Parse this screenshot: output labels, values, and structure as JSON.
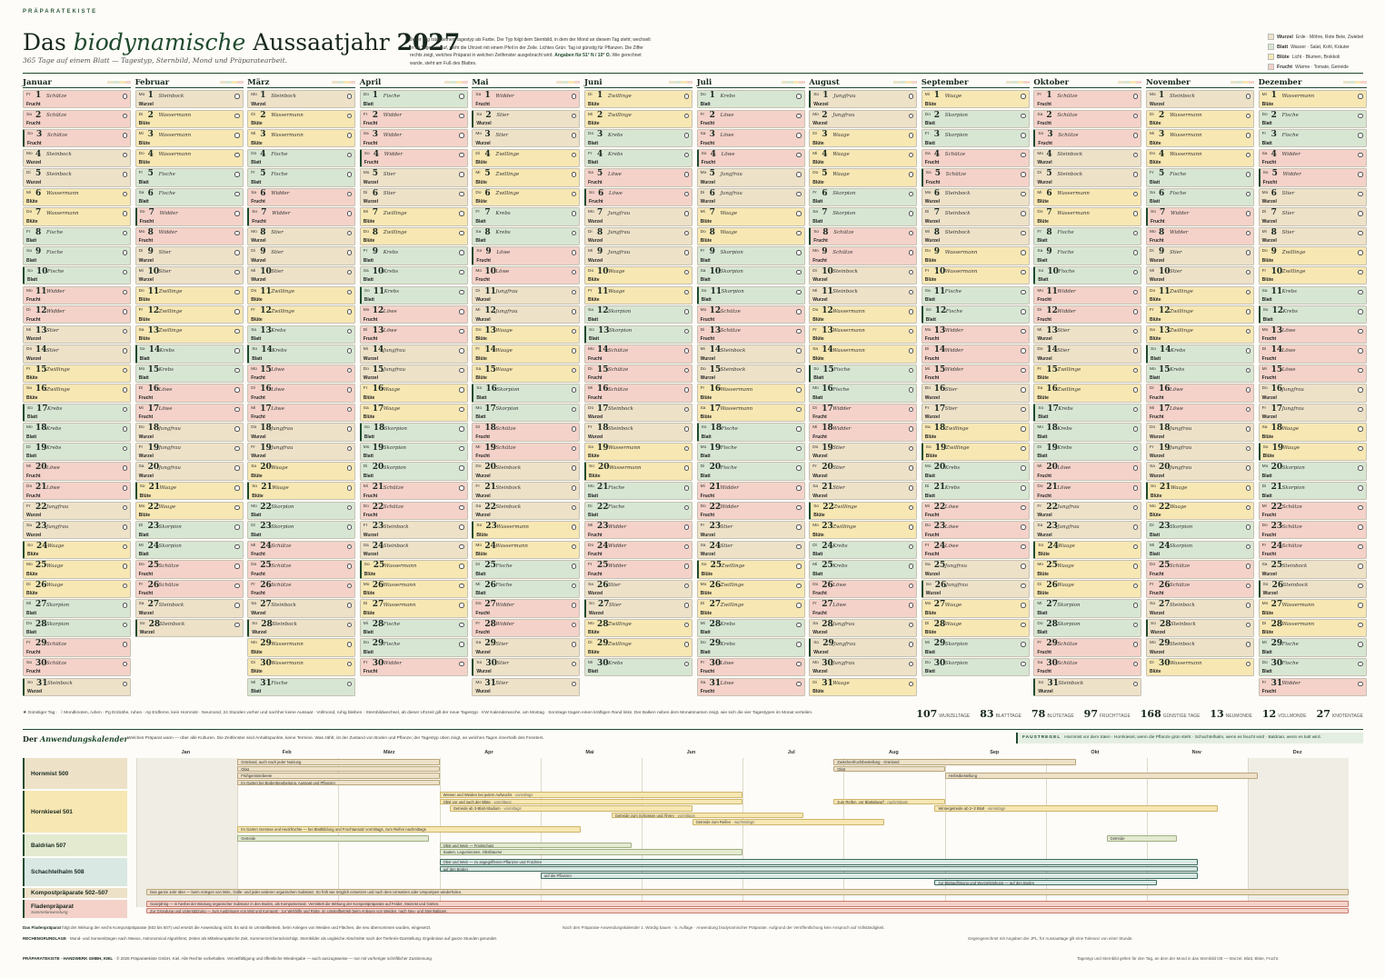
{
  "header": {
    "kicker": "PRÄPARATEKISTE",
    "title_pre": "Das ",
    "title_em": "biodynamische",
    "title_post": " Aussaatjahr ",
    "year": "2027",
    "subtitle": "365 Tage auf einem Blatt — Tagestyp, Sternbild, Mond und Präparatearbeit.",
    "intro": "Jeder Tag trägt seinen Tagestyp als Farbe. Der Typ folgt dem Sternbild, in dem der Mond an diesem Tag steht; wechselt er im Tagesverlauf, steht die Uhrzeit mit einem Pfeil in der Zeile. Lichtes Grün: Tag ist günstig für Pflanzen. Die Ziffer rechts zeigt, welches Präparat in welchen Zeitfenster ausgebracht wird.",
    "intro_bold": "Angaben für 51° N / 10° O.",
    "intro_tail": "Wie gerechnet wurde, steht am Fuß des Blattes."
  },
  "legend": [
    {
      "name": "Wurzel",
      "desc": "Erde · Möhre, Rote Bete, Zwiebel",
      "color": "#ede1c8"
    },
    {
      "name": "Blatt",
      "desc": "Wasser · Salat, Kohl, Kräuter",
      "color": "#d7e6d3"
    },
    {
      "name": "Blüte",
      "desc": "Licht · Blumen, Brokkoli",
      "color": "#f7e7b3"
    },
    {
      "name": "Frucht",
      "desc": "Wärme · Tomate, Getreide",
      "color": "#f4d2c9"
    }
  ],
  "calendar": {
    "months": [
      {
        "name": "Januar",
        "days": 31,
        "first_dow": 4
      },
      {
        "name": "Februar",
        "days": 28,
        "first_dow": 0
      },
      {
        "name": "März",
        "days": 31,
        "first_dow": 0
      },
      {
        "name": "April",
        "days": 30,
        "first_dow": 3
      },
      {
        "name": "Mai",
        "days": 31,
        "first_dow": 5
      },
      {
        "name": "Juni",
        "days": 30,
        "first_dow": 1
      },
      {
        "name": "Juli",
        "days": 31,
        "first_dow": 3
      },
      {
        "name": "August",
        "days": 31,
        "first_dow": 6
      },
      {
        "name": "September",
        "days": 30,
        "first_dow": 2
      },
      {
        "name": "Oktober",
        "days": 31,
        "first_dow": 4
      },
      {
        "name": "November",
        "days": 30,
        "first_dow": 0
      },
      {
        "name": "Dezember",
        "days": 31,
        "first_dow": 2
      }
    ],
    "dow": [
      "Mo",
      "Di",
      "Mi",
      "Do",
      "Fr",
      "Sa",
      "So"
    ],
    "type_names": [
      "Wurzel",
      "Blatt",
      "Blüte",
      "Frucht"
    ],
    "type_colors": [
      "#ede1c8",
      "#d7e6d3",
      "#f7e7b3",
      "#f4d2c9"
    ],
    "signs": [
      "Jungfrau",
      "Waage",
      "Skorpion",
      "Schütze",
      "Steinbock",
      "Wassermann",
      "Fische",
      "Widder",
      "Stier",
      "Zwillinge",
      "Krebs",
      "Löwe"
    ],
    "sign_types": [
      0,
      2,
      1,
      3,
      0,
      2,
      1,
      3,
      0,
      2,
      1,
      3
    ]
  },
  "bottom_legend": "★ Günstiger Tag · ☽ Mondknoten, ruhen · Pg Erdnähe, ruhen · Ap Erdferne, kein Hornmist · Neumond, 24 Stunden vorher und nachher keine Aussaat · Vollmond, ruhig bleiben · Sternbildwechsel, ab dieser Uhrzeit gilt der neue Tagestyp · KW Kalenderwoche, am Montag · Sonntage tragen einen kräftigen Rand links. Der Balken neben dem Monatsnamen zeigt, wie sich die vier Tagestypen im Monat verteilen.",
  "stats": [
    {
      "value": "107",
      "label": "WURZELTAGE"
    },
    {
      "value": "83",
      "label": "BLATTTAGE"
    },
    {
      "value": "78",
      "label": "BLÜTETAGE"
    },
    {
      "value": "97",
      "label": "FRUCHTTAGE"
    },
    {
      "value": "168",
      "label": "GÜNSTIGE TAGE"
    },
    {
      "value": "13",
      "label": "NEUMONDE"
    },
    {
      "value": "12",
      "label": "VOLLMONDE"
    },
    {
      "value": "27",
      "label": "KNOTENTAGE"
    }
  ],
  "anwendung": {
    "title_pre": "Der ",
    "title_em": "Anwendungskalender",
    "intro": "Welches Präparat wann — über alle Kulturen. Die Zeitfenster sind Anhaltspunkte, keine Termine. Was zählt, ist der Zustand von Boden und Pflanze; der Tagestyp oben zeigt, an welchen Tagen innerhalb des Fensters.",
    "faustregel_label": "FAUSTREGEL",
    "faustregel": "Hornmist vor dem Säen · Hornkiesel, wenn die Pflanze grün steht · Schachtelhalm, wenn es feucht wird · Baldrian, wenn es kalt wird.",
    "months": [
      "Jan",
      "Feb",
      "März",
      "Apr",
      "Mai",
      "Jun",
      "Jul",
      "Aug",
      "Sep",
      "Okt",
      "Nov",
      "Dez"
    ],
    "rows": [
      {
        "label": "Hornmist 500",
        "sub": "",
        "color": "#ede1c8",
        "border": "#b9a57b"
      },
      {
        "label": "Hornkiesel 501",
        "sub": "",
        "color": "#f7e7b3",
        "border": "#cdb46a"
      },
      {
        "label": "Baldrian 507",
        "sub": "",
        "color": "#e3ead0",
        "border": "#9fae82"
      },
      {
        "label": "Schachtelhalm 508",
        "sub": "",
        "color": "#d9e8e3",
        "border": "#3d6b5e"
      },
      {
        "label": "Kompostpräparate 502–507",
        "sub": "",
        "color": "#ede1c8",
        "border": "#b9a57b"
      },
      {
        "label": "Fladenpräparat",
        "sub": "Sammelanwendung",
        "color": "#f4d2c9",
        "border": "#c97c6c"
      }
    ],
    "bars": [
      {
        "text": "Grünland, auch nach jeder Nutzung",
        "note": "",
        "row": 0,
        "start": 1.0,
        "end": 3.0,
        "y": 0
      },
      {
        "text": "Obst",
        "note": "",
        "row": 0,
        "start": 1.0,
        "end": 3.0,
        "y": 1
      },
      {
        "text": "Frühgemüsebeete",
        "note": "",
        "row": 0,
        "start": 1.0,
        "end": 3.0,
        "y": 2
      },
      {
        "text": "Im Garten bei Bodenbearbeitung, Aussaat und Pflanzen",
        "note": "",
        "row": 0,
        "start": 1.0,
        "end": 3.0,
        "y": 3
      },
      {
        "text": "Zwischenfruchtbestellung · Grünland",
        "note": "",
        "row": 0,
        "start": 6.9,
        "end": 9.3,
        "y": 0
      },
      {
        "text": "Obst",
        "note": "",
        "row": 0,
        "start": 6.9,
        "end": 8.0,
        "y": 1
      },
      {
        "text": "Herbstbestellung",
        "note": "",
        "row": 0,
        "start": 8.0,
        "end": 11.1,
        "y": 2
      },
      {
        "text": "Wiesen und Weiden bei jedem Aufwuchs",
        "note": "· vormittags",
        "row": 1,
        "start": 3.0,
        "end": 6.0,
        "y": 0
      },
      {
        "text": "Obst vor und nach der Blüte",
        "note": "· vormittags",
        "row": 1,
        "start": 3.0,
        "end": 6.0,
        "y": 1
      },
      {
        "text": "Getreide ab 3-Blatt-Stadium",
        "note": "· vormittags",
        "row": 1,
        "start": 3.1,
        "end": 5.5,
        "y": 2
      },
      {
        "text": "Getreide zum Schossen und Ähren",
        "note": "· vormittags",
        "row": 1,
        "start": 4.7,
        "end": 6.6,
        "y": 3
      },
      {
        "text": "Getreide zum Reifen",
        "note": "· nachmittags",
        "row": 1,
        "start": 5.5,
        "end": 7.4,
        "y": 4
      },
      {
        "text": "zum Reifen, vor Blattabwurf",
        "note": "· nachmittags",
        "row": 1,
        "start": 6.9,
        "end": 8.0,
        "y": 1
      },
      {
        "text": "Wintergetreide ab 2–3 Blatt",
        "note": "· vormittags",
        "row": 1,
        "start": 7.9,
        "end": 10.7,
        "y": 2
      },
      {
        "text": "Im Garten Gemüse und Hackfrüchte — bei Blattbildung und Fruchtansatz vormittags, zum Reifen nachmittags",
        "note": "",
        "row": 1,
        "start": 1.0,
        "end": 4.4,
        "y": 5
      },
      {
        "text": "Getreide",
        "note": "",
        "row": 2,
        "start": 1.0,
        "end": 2.9,
        "y": 0
      },
      {
        "text": "Obst und Wein — Frostschutz",
        "note": "",
        "row": 2,
        "start": 3.0,
        "end": 4.9,
        "y": 1
      },
      {
        "text": "Saaten, Leguminosen, Obstbäume",
        "note": "",
        "row": 2,
        "start": 3.0,
        "end": 6.0,
        "y": 2
      },
      {
        "text": "Getreide",
        "note": "",
        "row": 2,
        "start": 9.6,
        "end": 10.3,
        "y": 0
      },
      {
        "text": "Obst und Wein — zu angegriffenen Pflanzen und Früchten",
        "note": "",
        "row": 3,
        "start": 3.0,
        "end": 10.5,
        "y": 0
      },
      {
        "text": "auf den Boden",
        "note": "",
        "row": 3,
        "start": 3.0,
        "end": 10.5,
        "y": 1
      },
      {
        "text": "auf die Pflanzen",
        "note": "",
        "row": 3,
        "start": 4.0,
        "end": 10.5,
        "y": 2
      },
      {
        "text": "zur Blattauflösung und Wurzelstärkung — auf den Boden",
        "note": "",
        "row": 3,
        "start": 7.9,
        "end": 10.1,
        "y": 3
      },
      {
        "text": "Das ganze Jahr über — beim Anlegen von Mist-, Gülle- und jeder anderen organischen Substanz. So früh wie möglich einsetzen und nach dem Umsetzen oder Umpumpen wiederholen.",
        "note": "",
        "row": 4,
        "start": 0.1,
        "end": 12.0,
        "y": 0
      },
      {
        "text": "Ganzjährig — in hierbei der Bindung organischer Substanz in den Boden, als Kompostersatz. Vermittelt die Wirkung der Kompostpräparate auf Felder, Steinrist und Gärten.",
        "note": "",
        "row": 5,
        "start": 0.1,
        "end": 12.0,
        "y": 0
      },
      {
        "text": "Zur Gründung und Unterstützung — zum Ausbringen von Mist und Kompost · zur Wirkhilfe und Rotte, im Umstellbetrieb beim Anlegen von Weiden, nach Neu- und Steinhaltigen.",
        "note": "",
        "row": 5,
        "start": 0.1,
        "end": 12.0,
        "y": 1
      }
    ]
  },
  "footer": {
    "left1_bold": "Das Fladenpräparat",
    "left1": " folgt der Wirkung der sechs Kompostpräparate (502 bis 507) und ersetzt die Anwendung nicht. Es wird im Umstellbetrieb, beim Anlegen von Weiden und Flächen, die neu übernommen wurden, eingesetzt.",
    "right1": "Nach den Präparate-Anwendungskalender 1. Würdig bauen · 5. Auflage · Anwendung biodynamischer Präparate. Aufgrund der Veröffentlichung kein Anspruch auf Vollständigkeit.",
    "left2_bold": "RECHENGRUNDLAGE",
    "left2": " · Mond- und Sonnenlängen nach Meeus, Astronomical Algorithms; Zeiten als Mitteleuropäische Zeit, Sommerzeit berücksichtigt. Sternbilder als ungleiche Abschnitte nach der Tierkreis-Darstellung. Ergebnisse auf ganze Stunden gerundet.",
    "right2": "Gegengerechnet mit Angaben der JPL; für Aussaattage gilt eine Toleranz von einer Stunde.",
    "left3_bold": "PRÄPARATEKISTE · HANDWERK GMBH, KIEL",
    "left3": " · © 2026 Präparatekiste GmbH, Kiel. Alle Rechte vorbehalten. Vervielfältigung und öffentliche Wiedergabe — auch auszugsweise — nur mit vorheriger schriftlicher Zustimmung.",
    "right3": "Tagestyp und Sternbild gelten für den Tag, an dem der Mond in das Sternbild tritt — Wurzel, Blatt, Blüte, Frucht."
  }
}
